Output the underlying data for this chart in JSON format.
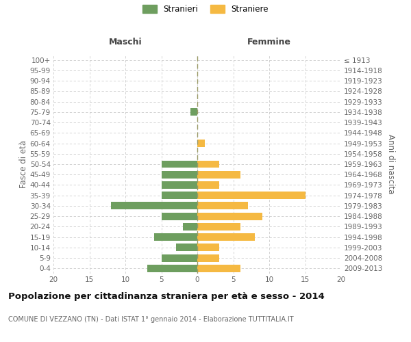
{
  "age_groups": [
    "0-4",
    "5-9",
    "10-14",
    "15-19",
    "20-24",
    "25-29",
    "30-34",
    "35-39",
    "40-44",
    "45-49",
    "50-54",
    "55-59",
    "60-64",
    "65-69",
    "70-74",
    "75-79",
    "80-84",
    "85-89",
    "90-94",
    "95-99",
    "100+"
  ],
  "birth_years": [
    "2009-2013",
    "2004-2008",
    "1999-2003",
    "1994-1998",
    "1989-1993",
    "1984-1988",
    "1979-1983",
    "1974-1978",
    "1969-1973",
    "1964-1968",
    "1959-1963",
    "1954-1958",
    "1949-1953",
    "1944-1948",
    "1939-1943",
    "1934-1938",
    "1929-1933",
    "1924-1928",
    "1919-1923",
    "1914-1918",
    "≤ 1913"
  ],
  "males": [
    7,
    5,
    3,
    6,
    2,
    5,
    12,
    5,
    5,
    5,
    5,
    0,
    0,
    0,
    0,
    1,
    0,
    0,
    0,
    0,
    0
  ],
  "females": [
    6,
    3,
    3,
    8,
    6,
    9,
    7,
    15,
    3,
    6,
    3,
    0,
    1,
    0,
    0,
    0,
    0,
    0,
    0,
    0,
    0
  ],
  "male_color": "#6e9e5f",
  "female_color": "#f5b942",
  "background_color": "#ffffff",
  "grid_color": "#cccccc",
  "center_line_color": "#999966",
  "xlim": 20,
  "title": "Popolazione per cittadinanza straniera per età e sesso - 2014",
  "subtitle": "COMUNE DI VEZZANO (TN) - Dati ISTAT 1° gennaio 2014 - Elaborazione TUTTITALIA.IT",
  "ylabel_left": "Fasce di età",
  "ylabel_right": "Anni di nascita",
  "header_left": "Maschi",
  "header_right": "Femmine",
  "legend_male": "Stranieri",
  "legend_female": "Straniere",
  "figsize": [
    6.0,
    5.0
  ],
  "dpi": 100
}
